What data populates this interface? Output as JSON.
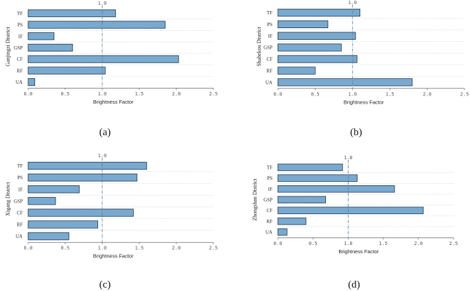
{
  "chart_data": [
    {
      "type": "bar",
      "orientation": "horizontal",
      "caption": "(a)",
      "ylabel": "Ganjingzi District",
      "xlabel": "Brightness Factor",
      "reference_label": "1.0",
      "reference_value": 1.0,
      "xlim": [
        0,
        2.5
      ],
      "xticks": [
        "0.0",
        "0.5",
        "1.0",
        "1.5",
        "2.0",
        "2.5"
      ],
      "categories": [
        "TF",
        "PS",
        "IF",
        "GSP",
        "CF",
        "RF",
        "UA"
      ],
      "values": [
        1.18,
        1.85,
        0.35,
        0.6,
        2.03,
        1.04,
        0.09
      ]
    },
    {
      "type": "bar",
      "orientation": "horizontal",
      "caption": "(b)",
      "ylabel": "Shahekou District",
      "xlabel": "Brightness Factor",
      "reference_label": "1.0",
      "reference_value": 1.0,
      "xlim": [
        0,
        2.5
      ],
      "xticks": [
        "0.0",
        "0.5",
        "1.0",
        "1.5",
        "2.0",
        "2.5"
      ],
      "categories": [
        "TF",
        "PS",
        "IF",
        "GSP",
        "CF",
        "RF",
        "UA"
      ],
      "values": [
        1.1,
        0.67,
        1.04,
        0.85,
        1.06,
        0.5,
        1.8
      ]
    },
    {
      "type": "bar",
      "orientation": "horizontal",
      "caption": "(c)",
      "ylabel": "Xigang District",
      "xlabel": "Brightness Factor",
      "reference_label": "1.0",
      "reference_value": 1.0,
      "xlim": [
        0,
        2.5
      ],
      "xticks": [
        "0.0",
        "0.5",
        "1.0",
        "1.5",
        "2.0",
        "2.5"
      ],
      "categories": [
        "TF",
        "PS",
        "IF",
        "GSP",
        "CF",
        "RF",
        "UA"
      ],
      "values": [
        1.6,
        1.47,
        0.69,
        0.37,
        1.42,
        0.94,
        0.55
      ]
    },
    {
      "type": "bar",
      "orientation": "horizontal",
      "caption": "(d)",
      "ylabel": "Zhongshan District",
      "xlabel": "Brightness Factor",
      "reference_label": "1.0",
      "reference_value": 1.0,
      "xlim": [
        0,
        2.5
      ],
      "xticks": [
        "0.0",
        "0.5",
        "1.0",
        "1.5",
        "2.0",
        "2.5"
      ],
      "categories": [
        "TF",
        "PS",
        "IF",
        "GSP",
        "CF",
        "RF",
        "UA"
      ],
      "values": [
        0.92,
        1.13,
        1.66,
        0.68,
        2.07,
        0.4,
        0.13
      ]
    }
  ],
  "colors": {
    "bar_fill": "#79a9cf",
    "bar_stroke": "#1e3246",
    "reference_line": "#5a7f9a",
    "divider": "#c8cdd2",
    "axis": "#444444"
  }
}
